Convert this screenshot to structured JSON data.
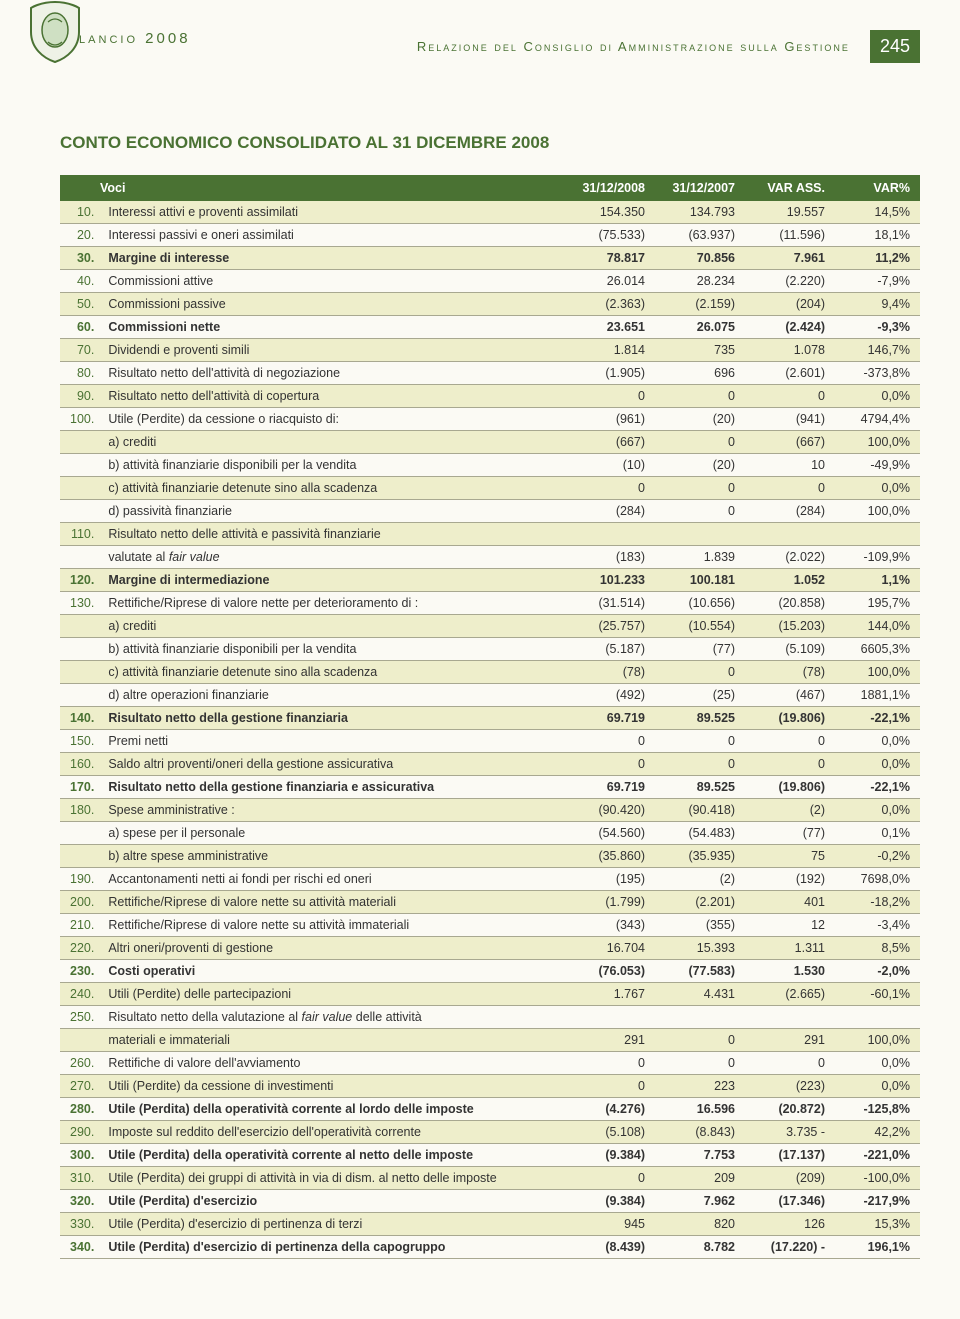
{
  "header": {
    "bilancio_label": "Bilancio 2008",
    "relazione_label": "Relazione del Consiglio di Amministrazione sulla Gestione",
    "page_number": "245"
  },
  "title": "CONTO ECONOMICO CONSOLIDATO AL 31 DICEMBRE 2008",
  "columns": [
    "Voci",
    "31/12/2008",
    "31/12/2007",
    "VAR ASS.",
    "VAR%"
  ],
  "rows": [
    {
      "n": "10.",
      "label": "Interessi attivi e proventi assimilati",
      "v": [
        "154.350",
        "134.793",
        "19.557",
        "14,5%"
      ],
      "bold": false
    },
    {
      "n": "20.",
      "label": "Interessi passivi e oneri assimilati",
      "v": [
        "(75.533)",
        "(63.937)",
        "(11.596)",
        "18,1%"
      ],
      "bold": false
    },
    {
      "n": "30.",
      "label": "Margine di interesse",
      "v": [
        "78.817",
        "70.856",
        "7.961",
        "11,2%"
      ],
      "bold": true
    },
    {
      "n": "40.",
      "label": "Commissioni attive",
      "v": [
        "26.014",
        "28.234",
        "(2.220)",
        "-7,9%"
      ],
      "bold": false
    },
    {
      "n": "50.",
      "label": "Commissioni passive",
      "v": [
        "(2.363)",
        "(2.159)",
        "(204)",
        "9,4%"
      ],
      "bold": false
    },
    {
      "n": "60.",
      "label": "Commissioni nette",
      "v": [
        "23.651",
        "26.075",
        "(2.424)",
        "-9,3%"
      ],
      "bold": true
    },
    {
      "n": "70.",
      "label": "Dividendi e proventi simili",
      "v": [
        "1.814",
        "735",
        "1.078",
        "146,7%"
      ],
      "bold": false
    },
    {
      "n": "80.",
      "label": "Risultato netto dell'attività di negoziazione",
      "v": [
        "(1.905)",
        "696",
        "(2.601)",
        "-373,8%"
      ],
      "bold": false
    },
    {
      "n": "90.",
      "label": "Risultato netto dell'attività di copertura",
      "v": [
        "0",
        "0",
        "0",
        "0,0%"
      ],
      "bold": false
    },
    {
      "n": "100.",
      "label": "Utile (Perdite) da cessione o riacquisto di:",
      "v": [
        "(961)",
        "(20)",
        "(941)",
        "4794,4%"
      ],
      "bold": false
    },
    {
      "n": "",
      "label": "a) crediti",
      "v": [
        "(667)",
        "0",
        "(667)",
        "100,0%"
      ],
      "bold": false
    },
    {
      "n": "",
      "label": "b) attività finanziarie disponibili per la vendita",
      "v": [
        "(10)",
        "(20)",
        "10",
        "-49,9%"
      ],
      "bold": false
    },
    {
      "n": "",
      "label": "c) attività finanziarie detenute sino alla scadenza",
      "v": [
        "0",
        "0",
        "0",
        "0,0%"
      ],
      "bold": false
    },
    {
      "n": "",
      "label": "d) passività finanziarie",
      "v": [
        "(284)",
        "0",
        "(284)",
        "100,0%"
      ],
      "bold": false
    },
    {
      "n": "110.",
      "label": "Risultato netto delle attività e passività finanziarie",
      "v": [
        "",
        "",
        "",
        ""
      ],
      "bold": false
    },
    {
      "n": "",
      "label": "valutate al <span class=\"fv\">fair value</span>",
      "v": [
        "(183)",
        "1.839",
        "(2.022)",
        "-109,9%"
      ],
      "bold": false,
      "html": true
    },
    {
      "n": "120.",
      "label": "Margine di intermediazione",
      "v": [
        "101.233",
        "100.181",
        "1.052",
        "1,1%"
      ],
      "bold": true
    },
    {
      "n": "130.",
      "label": "Rettifiche/Riprese di valore nette per deterioramento di :",
      "v": [
        "(31.514)",
        "(10.656)",
        "(20.858)",
        "195,7%"
      ],
      "bold": false
    },
    {
      "n": "",
      "label": "a) crediti",
      "v": [
        "(25.757)",
        "(10.554)",
        "(15.203)",
        "144,0%"
      ],
      "bold": false
    },
    {
      "n": "",
      "label": "b) attività finanziarie disponibili per la vendita",
      "v": [
        "(5.187)",
        "(77)",
        "(5.109)",
        "6605,3%"
      ],
      "bold": false
    },
    {
      "n": "",
      "label": "c) attività finanziarie detenute sino alla scadenza",
      "v": [
        "(78)",
        "0",
        "(78)",
        "100,0%"
      ],
      "bold": false
    },
    {
      "n": "",
      "label": "d) altre operazioni finanziarie",
      "v": [
        "(492)",
        "(25)",
        "(467)",
        "1881,1%"
      ],
      "bold": false
    },
    {
      "n": "140.",
      "label": "Risultato netto della gestione finanziaria",
      "v": [
        "69.719",
        "89.525",
        "(19.806)",
        "-22,1%"
      ],
      "bold": true
    },
    {
      "n": "150.",
      "label": "Premi netti",
      "v": [
        "0",
        "0",
        "0",
        "0,0%"
      ],
      "bold": false
    },
    {
      "n": "160.",
      "label": "Saldo altri proventi/oneri della gestione assicurativa",
      "v": [
        "0",
        "0",
        "0",
        "0,0%"
      ],
      "bold": false
    },
    {
      "n": "170.",
      "label": "Risultato netto della gestione finanziaria e assicurativa",
      "v": [
        "69.719",
        "89.525",
        "(19.806)",
        "-22,1%"
      ],
      "bold": true
    },
    {
      "n": "180.",
      "label": "Spese amministrative :",
      "v": [
        "(90.420)",
        "(90.418)",
        "(2)",
        "0,0%"
      ],
      "bold": false
    },
    {
      "n": "",
      "label": "a) spese per il personale",
      "v": [
        "(54.560)",
        "(54.483)",
        "(77)",
        "0,1%"
      ],
      "bold": false
    },
    {
      "n": "",
      "label": "b) altre spese amministrative",
      "v": [
        "(35.860)",
        "(35.935)",
        "75",
        "-0,2%"
      ],
      "bold": false
    },
    {
      "n": "190.",
      "label": "Accantonamenti netti ai fondi per rischi ed oneri",
      "v": [
        "(195)",
        "(2)",
        "(192)",
        "7698,0%"
      ],
      "bold": false
    },
    {
      "n": "200.",
      "label": "Rettifiche/Riprese di valore nette su attività materiali",
      "v": [
        "(1.799)",
        "(2.201)",
        "401",
        "-18,2%"
      ],
      "bold": false
    },
    {
      "n": "210.",
      "label": "Rettifiche/Riprese di valore nette su attività immateriali",
      "v": [
        "(343)",
        "(355)",
        "12",
        "-3,4%"
      ],
      "bold": false
    },
    {
      "n": "220.",
      "label": "Altri oneri/proventi di gestione",
      "v": [
        "16.704",
        "15.393",
        "1.311",
        "8,5%"
      ],
      "bold": false
    },
    {
      "n": "230.",
      "label": "Costi operativi",
      "v": [
        "(76.053)",
        "(77.583)",
        "1.530",
        "-2,0%"
      ],
      "bold": true
    },
    {
      "n": "240.",
      "label": "Utili (Perdite) delle partecipazioni",
      "v": [
        "1.767",
        "4.431",
        "(2.665)",
        "-60,1%"
      ],
      "bold": false
    },
    {
      "n": "250.",
      "label": "Risultato netto della valutazione al <span class=\"fv\">fair value</span> delle attività",
      "v": [
        "",
        "",
        "",
        ""
      ],
      "bold": false,
      "html": true
    },
    {
      "n": "",
      "label": "materiali e immateriali",
      "v": [
        "291",
        "0",
        "291",
        "100,0%"
      ],
      "bold": false
    },
    {
      "n": "260.",
      "label": "Rettifiche di valore dell'avviamento",
      "v": [
        "0",
        "0",
        "0",
        "0,0%"
      ],
      "bold": false
    },
    {
      "n": "270.",
      "label": "Utili (Perdite) da cessione di investimenti",
      "v": [
        "0",
        "223",
        "(223)",
        "0,0%"
      ],
      "bold": false
    },
    {
      "n": "280.",
      "label": "Utile (Perdita) della operatività corrente al lordo delle imposte",
      "v": [
        "(4.276)",
        "16.596",
        "(20.872)",
        "-125,8%"
      ],
      "bold": true
    },
    {
      "n": "290.",
      "label": "Imposte sul reddito dell'esercizio dell'operatività corrente",
      "v": [
        "(5.108)",
        "(8.843)",
        "3.735 -",
        "42,2%"
      ],
      "bold": false
    },
    {
      "n": "300.",
      "label": "Utile (Perdita) della operatività corrente al netto delle imposte",
      "v": [
        "(9.384)",
        "7.753",
        "(17.137)",
        "-221,0%"
      ],
      "bold": true
    },
    {
      "n": "310.",
      "label": "Utile (Perdita) dei gruppi di attività in via di dism. al netto delle imposte",
      "v": [
        "0",
        "209",
        "(209)",
        "-100,0%"
      ],
      "bold": false
    },
    {
      "n": "320.",
      "label": "Utile (Perdita) d'esercizio",
      "v": [
        "(9.384)",
        "7.962",
        "(17.346)",
        "-217,9%"
      ],
      "bold": true
    },
    {
      "n": "330.",
      "label": "Utile (Perdita) d'esercizio di pertinenza di terzi",
      "v": [
        "945",
        "820",
        "126",
        "15,3%"
      ],
      "bold": false
    },
    {
      "n": "340.",
      "label": "Utile (Perdita) d'esercizio di pertinenza della capogruppo",
      "v": [
        "(8.439)",
        "8.782",
        "(17.220) -",
        "196,1%"
      ],
      "bold": true
    }
  ],
  "style": {
    "page_bg": "#fbfaf4",
    "accent": "#4a7233",
    "zebra": "#eeeecb",
    "rule": "#a8a890",
    "font_size_body": 12.5,
    "font_size_title": 17
  }
}
